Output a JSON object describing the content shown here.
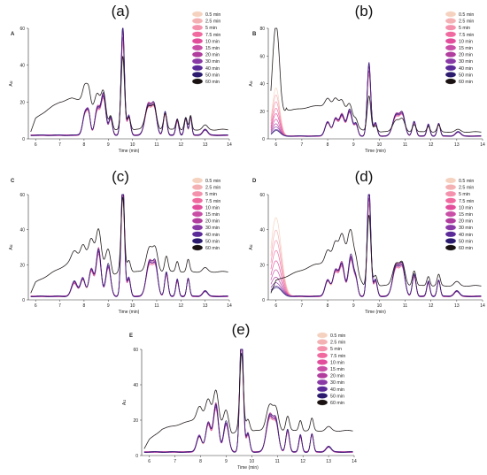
{
  "legend_labels": [
    "0.5 min",
    "2.5 min",
    "5 min",
    "7.5 min",
    "10 min",
    "15 min",
    "20 min",
    "30 min",
    "40 min",
    "50 min",
    "60 min"
  ],
  "colors": [
    "#f5d2bf",
    "#f4b1b4",
    "#f492ae",
    "#f06aa0",
    "#e34e9c",
    "#c94ea6",
    "#b13d9e",
    "#8a3aa6",
    "#5b2a99",
    "#2b1a6e",
    "#1a1212"
  ],
  "chart_data": [
    {
      "type": "line",
      "panel_letter": "A",
      "caption": "(a)",
      "xlabel": "Time (min)",
      "ylabel": "Au",
      "xlim": [
        5.7,
        14
      ],
      "ylim": [
        0,
        60
      ],
      "xticks": [
        6,
        7,
        8,
        9,
        10,
        11,
        12,
        13,
        14
      ],
      "yticks": [
        0,
        20,
        40,
        60
      ],
      "legend_position": "top-right",
      "peaks": [
        [
          8.05,
          12,
          0.1
        ],
        [
          8.2,
          9,
          0.07
        ],
        [
          8.55,
          14,
          0.1
        ],
        [
          8.8,
          21,
          0.1
        ],
        [
          9.1,
          9,
          0.07
        ],
        [
          9.6,
          55,
          0.07
        ],
        [
          9.85,
          10,
          0.07
        ],
        [
          10.65,
          16,
          0.13
        ],
        [
          10.9,
          14,
          0.1
        ],
        [
          11.35,
          12,
          0.07
        ],
        [
          11.85,
          8,
          0.06
        ],
        [
          12.2,
          9,
          0.06
        ],
        [
          12.4,
          10,
          0.05
        ],
        [
          13.0,
          3,
          0.1
        ]
      ],
      "baseline": 2,
      "late_variant": {
        "type": "hump",
        "points": [
          [
            5.8,
            2
          ],
          [
            6.0,
            9
          ],
          [
            6.5,
            14
          ],
          [
            7.0,
            18
          ],
          [
            7.5,
            20
          ],
          [
            8.0,
            19
          ],
          [
            8.4,
            14
          ],
          [
            8.8,
            7
          ],
          [
            9.0,
            4
          ],
          [
            9.3,
            3
          ]
        ],
        "peak_scale": 0.75
      }
    },
    {
      "type": "line",
      "panel_letter": "B",
      "caption": "(b)",
      "xlabel": "Time (min)",
      "ylabel": "Au",
      "xlim": [
        5.7,
        14
      ],
      "ylim": [
        0,
        80
      ],
      "xticks": [
        6,
        7,
        8,
        9,
        10,
        11,
        12,
        13,
        14
      ],
      "yticks": [
        0,
        20,
        40,
        60,
        80
      ],
      "legend_position": "top-right",
      "peaks": [
        [
          8.0,
          10,
          0.1
        ],
        [
          8.3,
          12,
          0.09
        ],
        [
          8.55,
          15,
          0.1
        ],
        [
          8.85,
          18,
          0.1
        ],
        [
          9.1,
          8,
          0.07
        ],
        [
          9.6,
          49,
          0.07
        ],
        [
          9.85,
          9,
          0.07
        ],
        [
          10.65,
          15,
          0.13
        ],
        [
          10.9,
          14,
          0.1
        ],
        [
          11.35,
          10,
          0.07
        ],
        [
          11.9,
          8,
          0.06
        ],
        [
          12.3,
          9,
          0.06
        ],
        [
          13.05,
          3,
          0.1
        ]
      ],
      "baseline": 2,
      "early_peak": {
        "center": 6.0,
        "width": 0.14,
        "heights": [
          35,
          30,
          25,
          20,
          16,
          12,
          9,
          7,
          5,
          4,
          2
        ]
      },
      "late_variant": {
        "type": "peak_and_hump",
        "peak": [
          6.0,
          80,
          0.15
        ],
        "points": [
          [
            6.3,
            18
          ],
          [
            7.0,
            20
          ],
          [
            7.6,
            22
          ],
          [
            8.0,
            22
          ],
          [
            8.4,
            20
          ],
          [
            8.9,
            12
          ],
          [
            9.2,
            6
          ],
          [
            9.5,
            3
          ]
        ],
        "peak_scale": 0.55
      }
    },
    {
      "type": "line",
      "panel_letter": "C",
      "caption": "(c)",
      "xlabel": "Time (min)",
      "ylabel": "Au",
      "xlim": [
        5.7,
        14
      ],
      "ylim": [
        0,
        60
      ],
      "xticks": [
        6,
        7,
        8,
        9,
        10,
        11,
        12,
        13,
        14
      ],
      "yticks": [
        0,
        20,
        40,
        60
      ],
      "legend_position": "top-right",
      "peaks": [
        [
          7.6,
          8,
          0.12
        ],
        [
          7.95,
          10,
          0.1
        ],
        [
          8.3,
          15,
          0.1
        ],
        [
          8.6,
          26,
          0.1
        ],
        [
          9.0,
          17,
          0.1
        ],
        [
          9.6,
          63,
          0.07
        ],
        [
          9.85,
          10,
          0.07
        ],
        [
          10.7,
          19,
          0.13
        ],
        [
          10.95,
          16,
          0.1
        ],
        [
          11.4,
          13,
          0.07
        ],
        [
          11.85,
          9,
          0.06
        ],
        [
          12.3,
          10,
          0.06
        ],
        [
          13.0,
          3,
          0.1
        ]
      ],
      "baseline": 2,
      "late_variant": {
        "type": "hump",
        "points": [
          [
            5.8,
            2
          ],
          [
            6.0,
            8
          ],
          [
            6.5,
            12
          ],
          [
            7.0,
            16
          ],
          [
            7.5,
            20
          ],
          [
            8.0,
            23
          ],
          [
            8.4,
            22
          ],
          [
            8.8,
            17
          ],
          [
            9.2,
            12
          ],
          [
            9.45,
            14
          ]
        ],
        "peak_scale": 0.7
      }
    },
    {
      "type": "line",
      "panel_letter": "D",
      "caption": "(d)",
      "xlabel": "Time (min)",
      "ylabel": "Au",
      "xlim": [
        5.7,
        14
      ],
      "ylim": [
        0,
        60
      ],
      "xticks": [
        6,
        7,
        8,
        9,
        10,
        11,
        12,
        13,
        14
      ],
      "yticks": [
        0,
        20,
        40,
        60
      ],
      "legend_position": "top-right",
      "peaks": [
        [
          8.0,
          9,
          0.1
        ],
        [
          8.3,
          14,
          0.1
        ],
        [
          8.55,
          18,
          0.1
        ],
        [
          8.9,
          22,
          0.1
        ],
        [
          9.1,
          8,
          0.07
        ],
        [
          9.6,
          58,
          0.07
        ],
        [
          9.85,
          9,
          0.07
        ],
        [
          10.65,
          17,
          0.13
        ],
        [
          10.9,
          15,
          0.1
        ],
        [
          11.35,
          12,
          0.07
        ],
        [
          11.9,
          8,
          0.06
        ],
        [
          12.3,
          9,
          0.06
        ],
        [
          13.0,
          3,
          0.1
        ]
      ],
      "baseline": 2,
      "early_peak": {
        "center": 6.0,
        "width": 0.2,
        "heights": [
          45,
          38,
          32,
          26,
          20,
          15,
          11,
          8,
          6,
          5,
          3
        ]
      },
      "late_variant": {
        "type": "hump",
        "points": [
          [
            5.8,
            2
          ],
          [
            6.0,
            9
          ],
          [
            6.5,
            12
          ],
          [
            7.0,
            15
          ],
          [
            7.5,
            18
          ],
          [
            8.0,
            20
          ],
          [
            8.4,
            21
          ],
          [
            8.8,
            24
          ],
          [
            9.1,
            15
          ],
          [
            9.4,
            6
          ]
        ],
        "peak_scale": 0.72
      }
    },
    {
      "type": "line",
      "panel_letter": "E",
      "caption": "(e)",
      "xlabel": "Time (min)",
      "ylabel": "Au",
      "xlim": [
        5.7,
        14
      ],
      "ylim": [
        0,
        60
      ],
      "xticks": [
        6,
        7,
        8,
        9,
        10,
        11,
        12,
        13,
        14
      ],
      "yticks": [
        0,
        20,
        40,
        60
      ],
      "legend_position": "top-right",
      "peaks": [
        [
          7.95,
          9,
          0.1
        ],
        [
          8.3,
          16,
          0.1
        ],
        [
          8.6,
          26,
          0.1
        ],
        [
          9.0,
          16,
          0.1
        ],
        [
          9.6,
          65,
          0.07
        ],
        [
          9.85,
          10,
          0.07
        ],
        [
          10.7,
          20,
          0.13
        ],
        [
          10.95,
          15,
          0.1
        ],
        [
          11.4,
          12,
          0.07
        ],
        [
          11.9,
          9,
          0.06
        ],
        [
          12.35,
          10,
          0.06
        ],
        [
          13.0,
          3,
          0.1
        ]
      ],
      "baseline": 2,
      "late_variant": {
        "type": "hump",
        "points": [
          [
            5.8,
            2
          ],
          [
            6.0,
            7
          ],
          [
            6.5,
            13
          ],
          [
            7.0,
            15
          ],
          [
            7.5,
            17
          ],
          [
            8.0,
            20
          ],
          [
            8.4,
            18
          ],
          [
            8.8,
            14
          ],
          [
            9.2,
            10
          ],
          [
            9.45,
            12
          ]
        ],
        "peak_scale": 0.7
      }
    }
  ]
}
